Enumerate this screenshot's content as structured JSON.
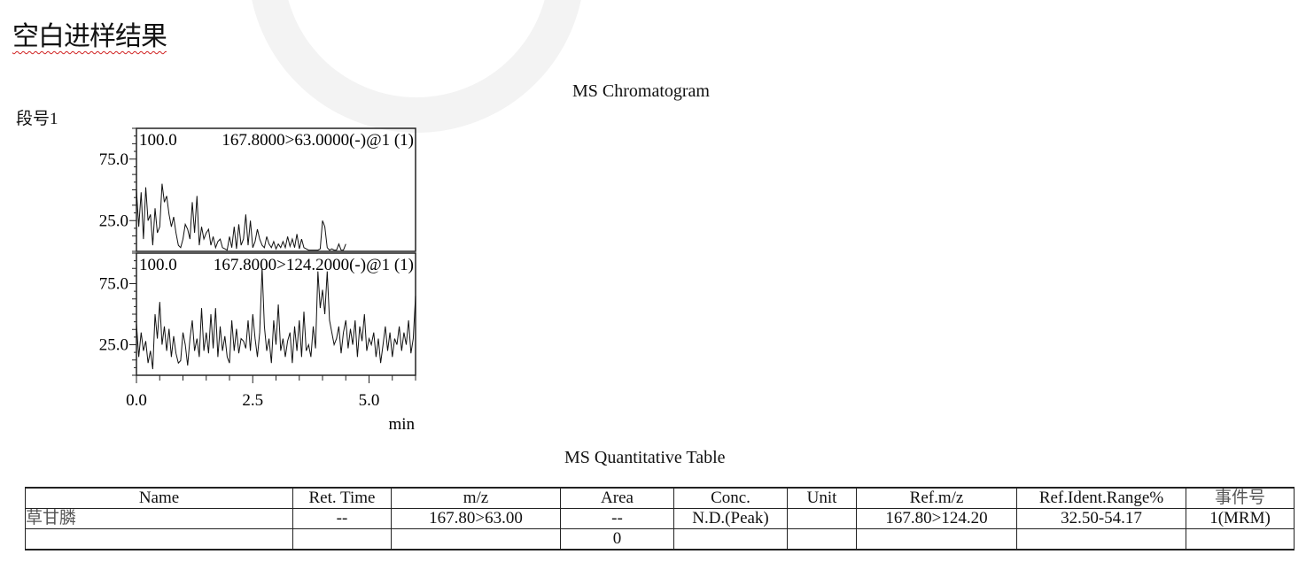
{
  "document": {
    "title": "空白进样结果",
    "chromatogram_title": "MS Chromatogram",
    "segment_label": "段号1",
    "table_title": "MS Quantitative Table"
  },
  "chart_data": {
    "type": "line",
    "xlabel": "min",
    "xlim": [
      0,
      6.0
    ],
    "x_ticks": [
      "0.0",
      "2.5",
      "5.0"
    ],
    "y_ticks": [
      "25.0",
      "75.0"
    ],
    "panels": [
      {
        "label": "167.8000>63.0000(-)@1 (1)",
        "scale_label": "100.0",
        "ylim": [
          0,
          100
        ],
        "x": [
          0.0,
          0.05,
          0.1,
          0.15,
          0.2,
          0.25,
          0.3,
          0.35,
          0.4,
          0.45,
          0.5,
          0.55,
          0.6,
          0.65,
          0.7,
          0.75,
          0.8,
          0.85,
          0.9,
          0.95,
          1.0,
          1.05,
          1.1,
          1.15,
          1.2,
          1.25,
          1.3,
          1.35,
          1.4,
          1.45,
          1.5,
          1.55,
          1.6,
          1.65,
          1.7,
          1.75,
          1.8,
          1.85,
          1.9,
          1.95,
          2.0,
          2.05,
          2.1,
          2.15,
          2.2,
          2.25,
          2.3,
          2.35,
          2.4,
          2.45,
          2.5,
          2.55,
          2.6,
          2.65,
          2.7,
          2.75,
          2.8,
          2.85,
          2.9,
          2.95,
          3.0,
          3.05,
          3.1,
          3.15,
          3.2,
          3.25,
          3.3,
          3.35,
          3.4,
          3.45,
          3.5,
          3.55,
          3.6,
          3.7,
          3.8,
          3.9,
          3.95,
          4.0,
          4.05,
          4.1,
          4.15,
          4.2,
          4.25,
          4.3,
          4.35,
          4.4,
          4.45,
          4.5
        ],
        "y": [
          50,
          20,
          48,
          10,
          52,
          25,
          30,
          5,
          35,
          15,
          20,
          55,
          40,
          45,
          30,
          20,
          28,
          15,
          5,
          3,
          10,
          22,
          18,
          10,
          40,
          15,
          45,
          5,
          20,
          10,
          15,
          18,
          5,
          12,
          3,
          8,
          10,
          3,
          2,
          1,
          12,
          3,
          20,
          2,
          22,
          5,
          10,
          30,
          5,
          25,
          3,
          8,
          18,
          10,
          5,
          3,
          12,
          6,
          3,
          8,
          2,
          6,
          3,
          8,
          3,
          12,
          4,
          10,
          3,
          14,
          2,
          10,
          3,
          1,
          1,
          1,
          2,
          25,
          20,
          3,
          1,
          2,
          1,
          1,
          6,
          1,
          1,
          6
        ],
        "color": "#111111"
      },
      {
        "label": "167.8000>124.2000(-)@1 (1)",
        "scale_label": "100.0",
        "ylim": [
          0,
          100
        ],
        "x": [
          0.0,
          0.05,
          0.1,
          0.15,
          0.2,
          0.25,
          0.3,
          0.35,
          0.4,
          0.45,
          0.5,
          0.55,
          0.6,
          0.65,
          0.7,
          0.75,
          0.8,
          0.85,
          0.9,
          0.95,
          1.0,
          1.05,
          1.1,
          1.15,
          1.2,
          1.25,
          1.3,
          1.35,
          1.4,
          1.45,
          1.5,
          1.55,
          1.6,
          1.65,
          1.7,
          1.75,
          1.8,
          1.85,
          1.9,
          1.95,
          2.0,
          2.05,
          2.1,
          2.15,
          2.2,
          2.25,
          2.3,
          2.35,
          2.4,
          2.45,
          2.5,
          2.55,
          2.6,
          2.65,
          2.7,
          2.75,
          2.8,
          2.85,
          2.9,
          2.95,
          3.0,
          3.05,
          3.1,
          3.15,
          3.2,
          3.25,
          3.3,
          3.35,
          3.4,
          3.45,
          3.5,
          3.55,
          3.6,
          3.65,
          3.7,
          3.75,
          3.8,
          3.85,
          3.9,
          3.95,
          4.0,
          4.05,
          4.1,
          4.15,
          4.2,
          4.25,
          4.3,
          4.35,
          4.4,
          4.45,
          4.5,
          4.55,
          4.6,
          4.65,
          4.7,
          4.75,
          4.8,
          4.85,
          4.9,
          4.95,
          5.0,
          5.05,
          5.1,
          5.15,
          5.2,
          5.25,
          5.3,
          5.35,
          5.4,
          5.45,
          5.5,
          5.55,
          5.6,
          5.65,
          5.7,
          5.75,
          5.8,
          5.85,
          5.9,
          5.95,
          6.0
        ],
        "y": [
          42,
          15,
          35,
          20,
          28,
          10,
          20,
          5,
          50,
          30,
          60,
          25,
          40,
          20,
          38,
          15,
          32,
          18,
          10,
          12,
          35,
          25,
          8,
          30,
          45,
          20,
          30,
          15,
          55,
          20,
          35,
          18,
          50,
          22,
          55,
          15,
          40,
          20,
          32,
          15,
          10,
          45,
          20,
          38,
          18,
          30,
          28,
          22,
          45,
          20,
          50,
          30,
          15,
          35,
          88,
          40,
          20,
          30,
          10,
          45,
          25,
          58,
          20,
          30,
          15,
          28,
          35,
          10,
          40,
          20,
          45,
          15,
          52,
          20,
          25,
          15,
          40,
          22,
          85,
          55,
          70,
          50,
          85,
          45,
          35,
          25,
          30,
          40,
          18,
          35,
          45,
          22,
          38,
          25,
          45,
          15,
          40,
          28,
          50,
          20,
          30,
          25,
          35,
          15,
          30,
          10,
          25,
          40,
          20,
          35,
          15,
          30,
          25,
          40,
          20,
          35,
          25,
          45,
          18,
          30,
          65
        ],
        "color": "#111111"
      }
    ]
  },
  "table": {
    "headers": [
      "Name",
      "Ret. Time",
      "m/z",
      "Area",
      "Conc.",
      "Unit",
      "Ref.m/z",
      "Ref.Ident.Range%",
      "事件号"
    ],
    "rows": [
      [
        "草甘膦",
        "--",
        "167.80>63.00",
        "--",
        "N.D.(Peak)",
        "",
        "167.80>124.20",
        "32.50-54.17",
        "1(MRM)"
      ],
      [
        "",
        "",
        "",
        "0",
        "",
        "",
        "",
        "",
        ""
      ]
    ]
  }
}
